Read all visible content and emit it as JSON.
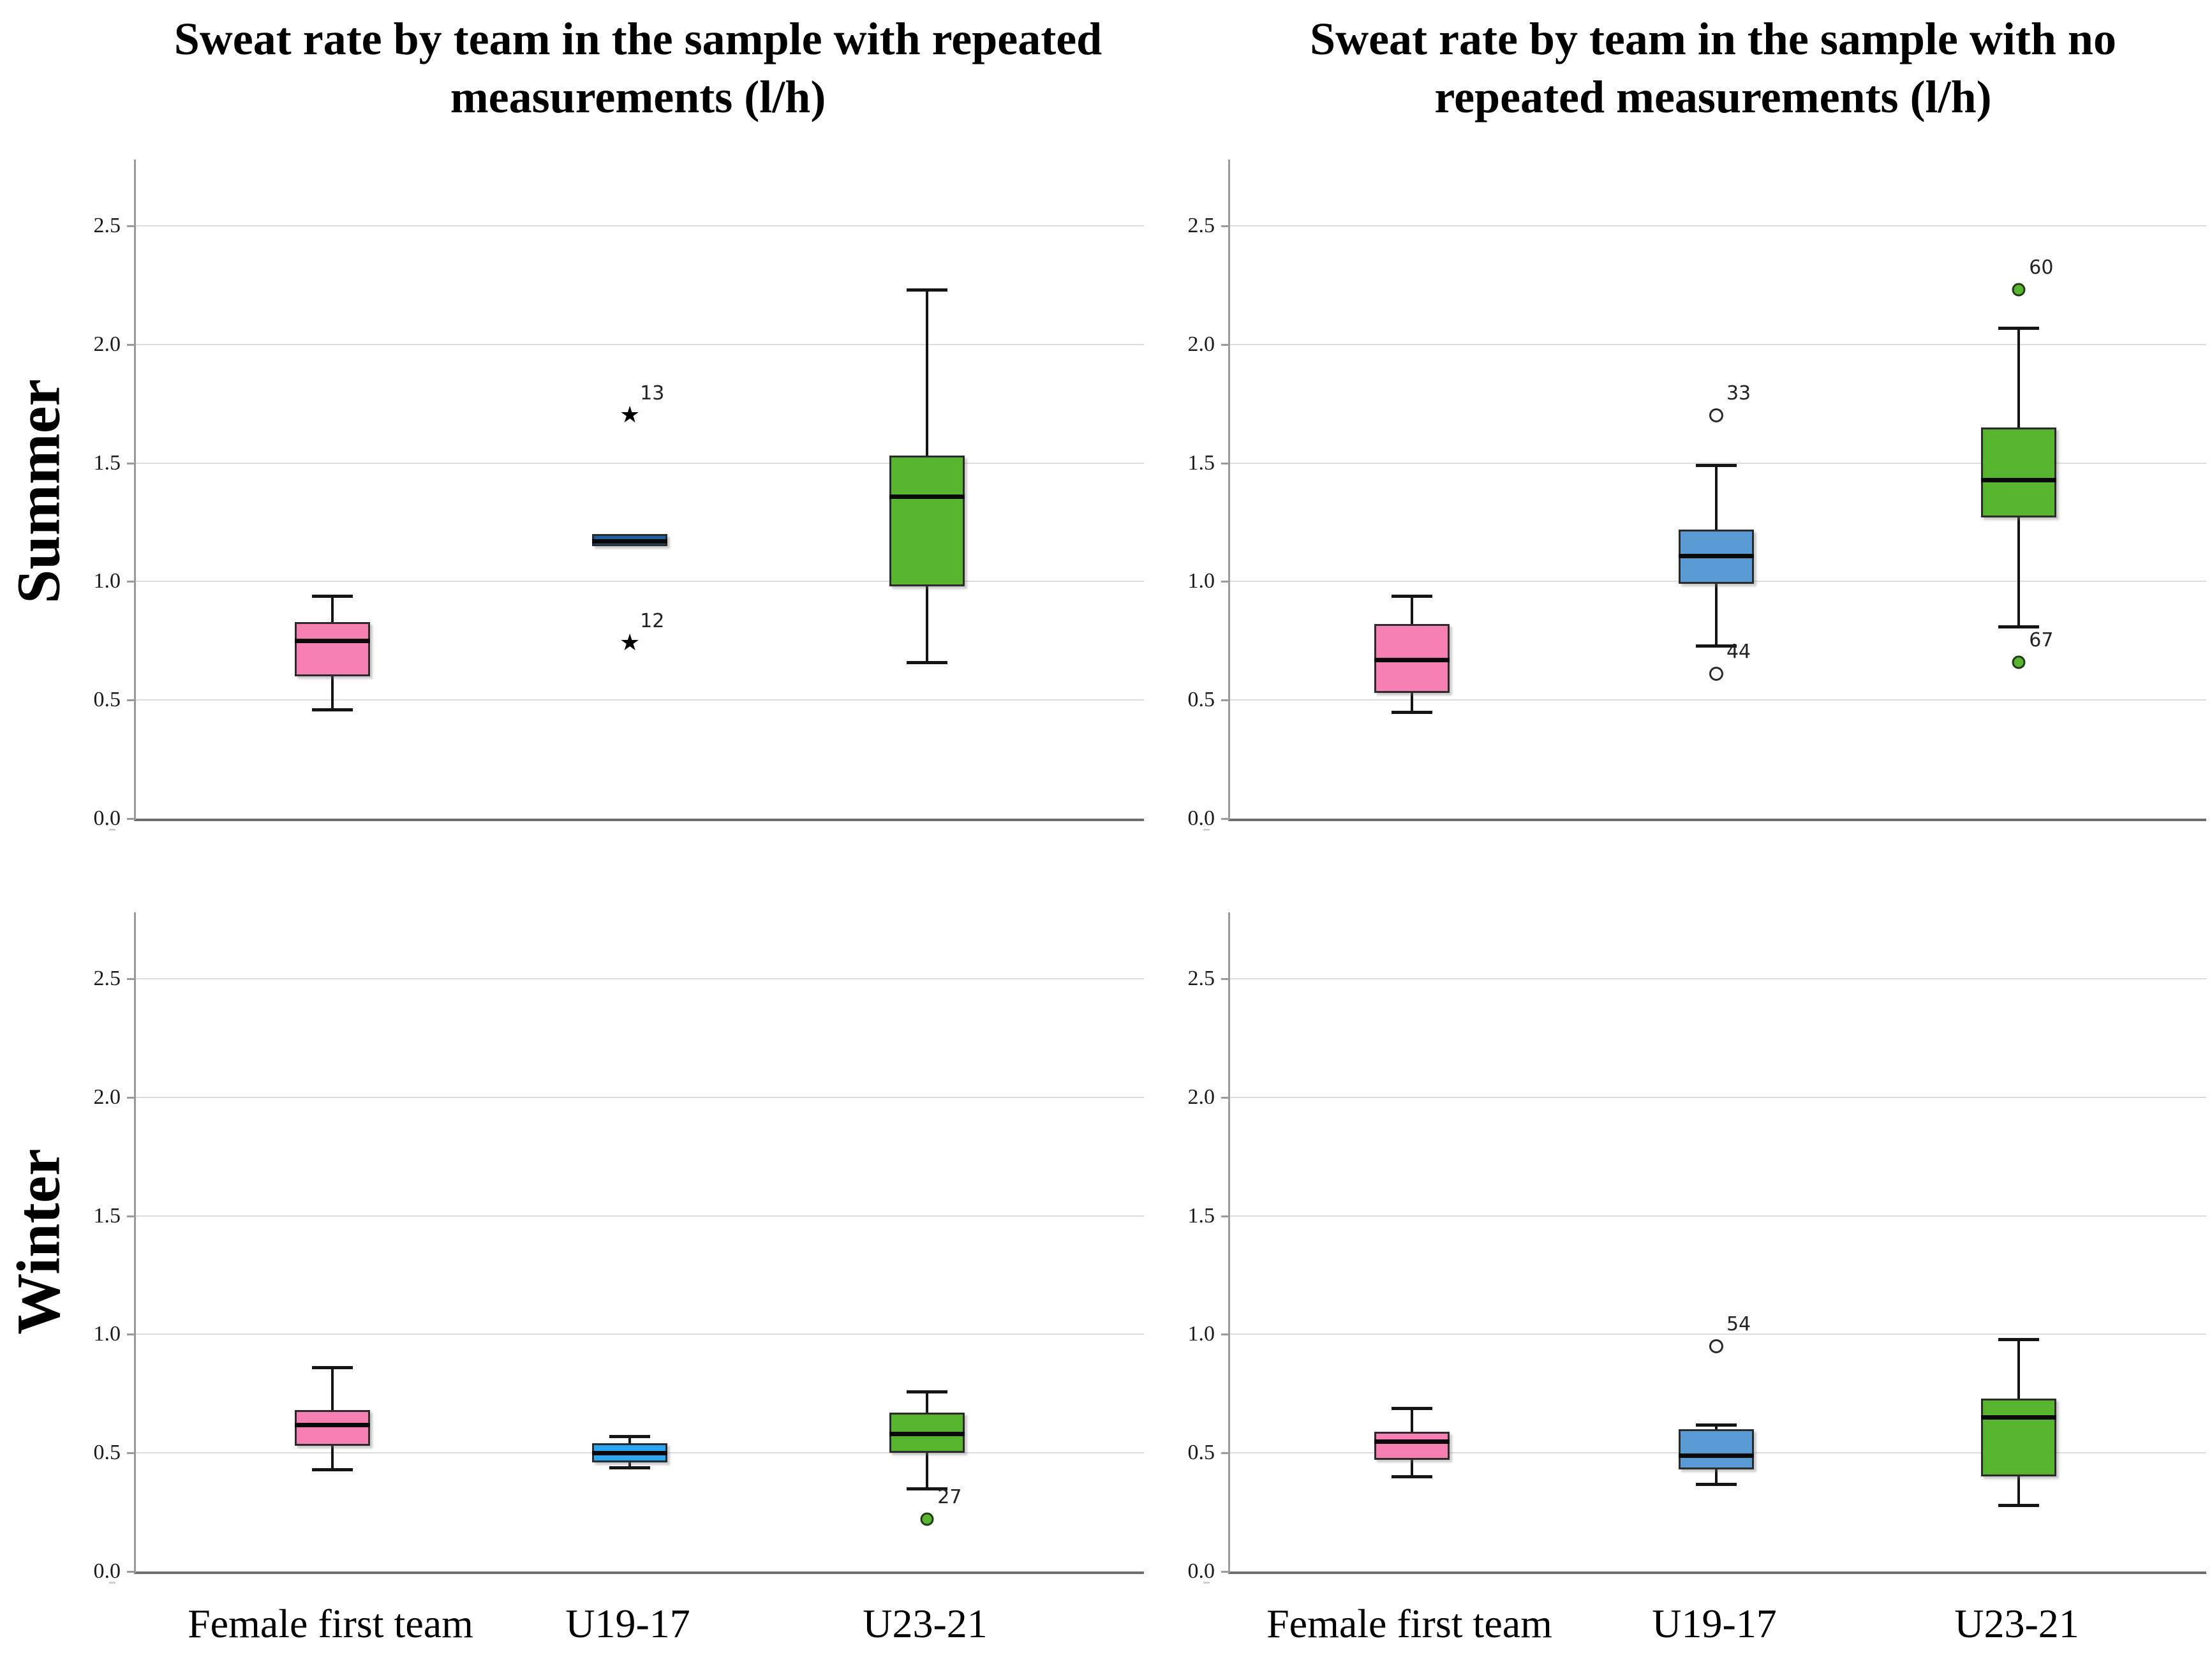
{
  "chart_data": {
    "type": "boxplot",
    "layout": "2x2-grid",
    "unit": "l/h",
    "col_titles": [
      "Sweat rate by team in the sample with repeated measurements (l/h)",
      "Sweat rate by team in the sample with no repeated measurements (l/h)"
    ],
    "row_labels": [
      "Summer",
      "Winter"
    ],
    "categories": [
      "Female first team",
      "U19-17",
      "U23-21"
    ],
    "y_axis": {
      "tick_values": [
        0.0,
        0.5,
        1.0,
        1.5,
        2.0,
        2.5
      ],
      "min": 0.0,
      "max": 2.78,
      "gridlines": true
    },
    "colors": {
      "pink": "#F780B3",
      "dark_blue": "#1E5F9E",
      "light_blue": "#29A7F2",
      "cornflower_blue": "#5B9BD5",
      "green": "#57B52F",
      "gridline": "#DCDCDC",
      "axis": "#9A9A9A"
    },
    "panels": {
      "summer_repeated": [
        {
          "category": "Female first team",
          "color": "#F780B3",
          "whisker_low": 0.46,
          "q1": 0.6,
          "median": 0.75,
          "q3": 0.83,
          "whisker_high": 0.94,
          "outliers": []
        },
        {
          "category": "U19-17",
          "color": "#1E5F9E",
          "whisker_low": 1.15,
          "q1": 1.15,
          "median": 1.17,
          "q3": 1.2,
          "whisker_high": 1.2,
          "outliers": [
            {
              "value": 1.7,
              "label": "13",
              "marker": "star"
            },
            {
              "value": 0.74,
              "label": "12",
              "marker": "star"
            }
          ]
        },
        {
          "category": "U23-21",
          "color": "#57B52F",
          "whisker_low": 0.66,
          "q1": 0.98,
          "median": 1.36,
          "q3": 1.53,
          "whisker_high": 2.23,
          "outliers": []
        }
      ],
      "summer_no_repeated": [
        {
          "category": "Female first team",
          "color": "#F780B3",
          "whisker_low": 0.45,
          "q1": 0.53,
          "median": 0.67,
          "q3": 0.82,
          "whisker_high": 0.94,
          "outliers": []
        },
        {
          "category": "U19-17",
          "color": "#5B9BD5",
          "whisker_low": 0.73,
          "q1": 0.99,
          "median": 1.11,
          "q3": 1.22,
          "whisker_high": 1.49,
          "outliers": [
            {
              "value": 1.7,
              "label": "33",
              "marker": "circle"
            },
            {
              "value": 0.61,
              "label": "44",
              "marker": "circle"
            }
          ]
        },
        {
          "category": "U23-21",
          "color": "#57B52F",
          "whisker_low": 0.81,
          "q1": 1.27,
          "median": 1.43,
          "q3": 1.65,
          "whisker_high": 2.07,
          "outliers": [
            {
              "value": 2.23,
              "label": "60",
              "marker": "dot"
            },
            {
              "value": 0.66,
              "label": "67",
              "marker": "dot"
            }
          ]
        }
      ],
      "winter_repeated": [
        {
          "category": "Female first team",
          "color": "#F780B3",
          "whisker_low": 0.43,
          "q1": 0.53,
          "median": 0.62,
          "q3": 0.68,
          "whisker_high": 0.86,
          "outliers": []
        },
        {
          "category": "U19-17",
          "color": "#29A7F2",
          "whisker_low": 0.44,
          "q1": 0.46,
          "median": 0.5,
          "q3": 0.54,
          "whisker_high": 0.57,
          "outliers": []
        },
        {
          "category": "U23-21",
          "color": "#57B52F",
          "whisker_low": 0.35,
          "q1": 0.5,
          "median": 0.58,
          "q3": 0.67,
          "whisker_high": 0.76,
          "outliers": [
            {
              "value": 0.22,
              "label": "27",
              "marker": "dot"
            }
          ]
        }
      ],
      "winter_no_repeated": [
        {
          "category": "Female first team",
          "color": "#F780B3",
          "whisker_low": 0.4,
          "q1": 0.47,
          "median": 0.55,
          "q3": 0.59,
          "whisker_high": 0.69,
          "outliers": []
        },
        {
          "category": "U19-17",
          "color": "#5B9BD5",
          "whisker_low": 0.37,
          "q1": 0.43,
          "median": 0.49,
          "q3": 0.6,
          "whisker_high": 0.62,
          "outliers": [
            {
              "value": 0.95,
              "label": "54",
              "marker": "circle"
            }
          ]
        },
        {
          "category": "U23-21",
          "color": "#57B52F",
          "whisker_low": 0.28,
          "q1": 0.4,
          "median": 0.65,
          "q3": 0.73,
          "whisker_high": 0.98,
          "outliers": []
        }
      ]
    }
  }
}
